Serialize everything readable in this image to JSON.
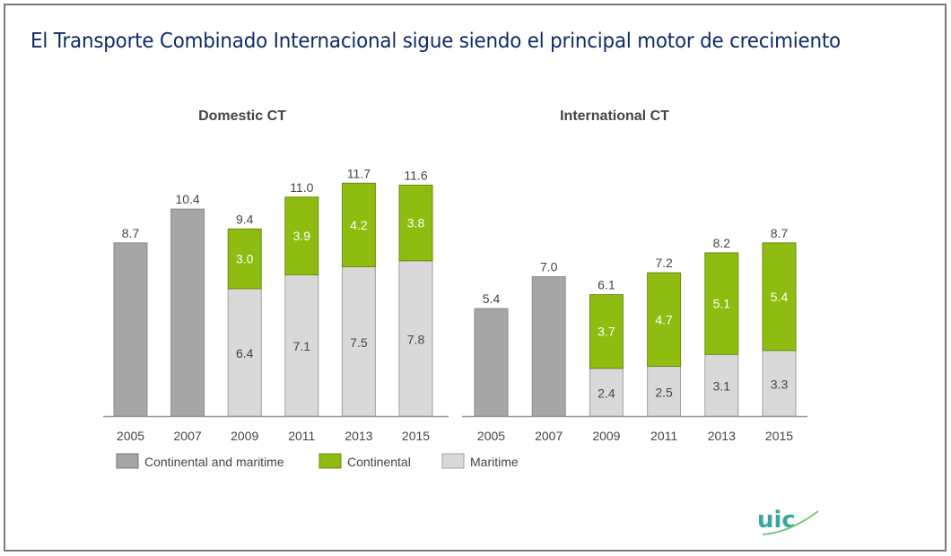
{
  "title": "El Transporte Combinado Internacional sigue siendo el principal motor de crecimiento",
  "colors": {
    "combined": "#a6a6a6",
    "continental": "#8fbc10",
    "maritime": "#d9d9d9",
    "title": "#0f2a66"
  },
  "logo": {
    "text": "uic"
  },
  "chart_data": [
    {
      "type": "bar",
      "stacked": true,
      "title": "Domestic CT",
      "categories": [
        "2005",
        "2007",
        "2009",
        "2011",
        "2013",
        "2015"
      ],
      "totals": [
        "8.7",
        "10.4",
        "9.4",
        "11.0",
        "11.7",
        "11.6"
      ],
      "series": [
        {
          "name": "Continental and maritime",
          "values": [
            8.7,
            10.4,
            null,
            null,
            null,
            null
          ]
        },
        {
          "name": "Maritime",
          "values": [
            null,
            null,
            6.4,
            7.1,
            7.5,
            7.8
          ]
        },
        {
          "name": "Continental",
          "values": [
            null,
            null,
            3.0,
            3.9,
            4.2,
            3.8
          ]
        }
      ]
    },
    {
      "type": "bar",
      "stacked": true,
      "title": "International CT",
      "categories": [
        "2005",
        "2007",
        "2009",
        "2011",
        "2013",
        "2015"
      ],
      "totals": [
        "5.4",
        "7.0",
        "6.1",
        "7.2",
        "8.2",
        "8.7"
      ],
      "series": [
        {
          "name": "Continental and maritime",
          "values": [
            5.4,
            7.0,
            null,
            null,
            null,
            null
          ]
        },
        {
          "name": "Maritime",
          "values": [
            null,
            null,
            2.4,
            2.5,
            3.1,
            3.3
          ]
        },
        {
          "name": "Continental",
          "values": [
            null,
            null,
            3.7,
            4.7,
            5.1,
            5.4
          ]
        }
      ]
    }
  ],
  "legend": [
    "Continental and maritime",
    "Continental",
    "Maritime"
  ]
}
